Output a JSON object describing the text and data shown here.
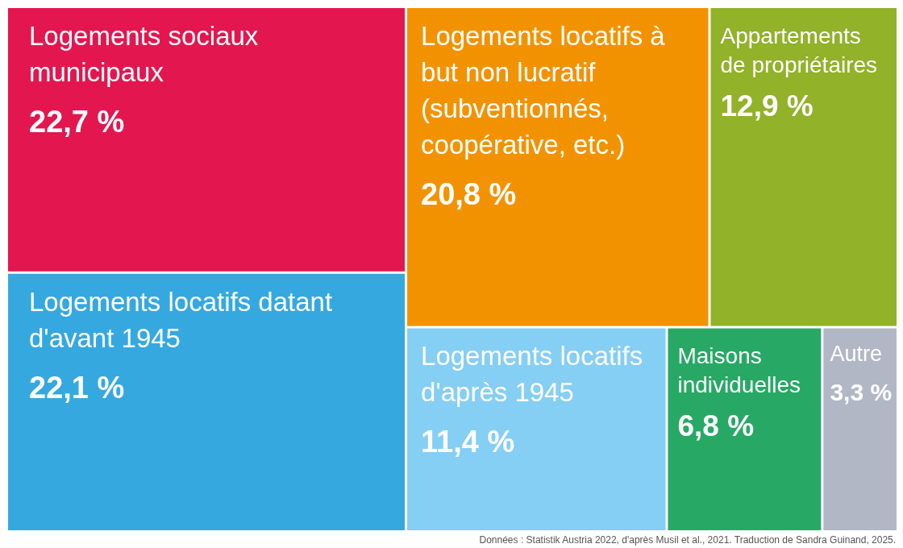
{
  "chart_data": {
    "type": "other",
    "categories": [
      "Logements sociaux municipaux",
      "Logements locatifs datant d'avant 1945",
      "Logements locatifs à but non lucratif (subventionnés, coopérative, etc.)",
      "Appartements de propriétaires",
      "Logements locatifs d'après 1945",
      "Maisons individuelles",
      "Autre"
    ],
    "values": [
      22.7,
      22.1,
      20.8,
      12.9,
      11.4,
      6.8,
      3.3
    ],
    "value_labels": [
      "22,7 %",
      "22,1 %",
      "20,8 %",
      "12,9 %",
      "11,4 %",
      "6,8 %",
      "3,3 %"
    ],
    "colors": [
      "#e3164f",
      "#35a8e0",
      "#f39200",
      "#91b229",
      "#85cef4",
      "#27a965",
      "#b2b7c6"
    ],
    "annotations": [
      "Données : Statistik Austria 2022, d'après Musil et al., 2021. Traduction de Sandra Guinand, 2025."
    ]
  }
}
